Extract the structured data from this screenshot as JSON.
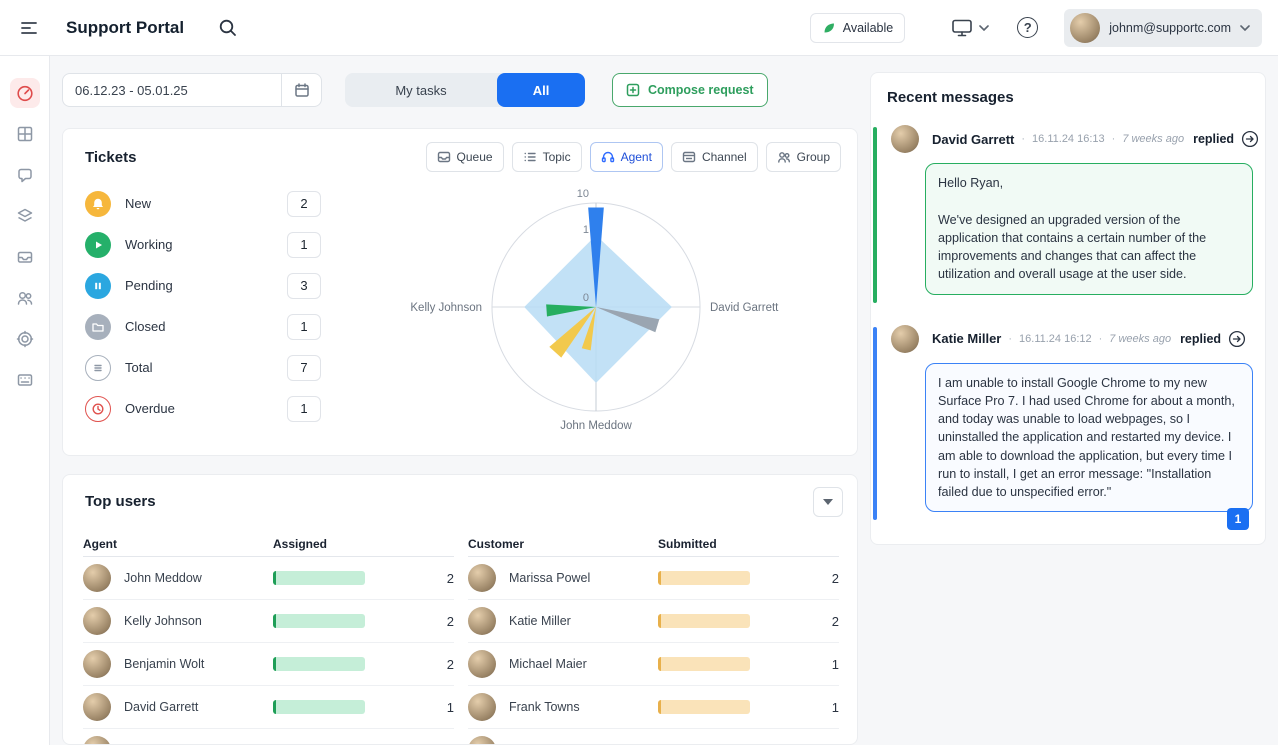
{
  "header": {
    "title": "Support Portal",
    "status_label": "Available",
    "user_email": "johnm@supportc.com"
  },
  "icons": {
    "help": "?"
  },
  "toolbar": {
    "date_range": "06.12.23 - 05.01.25",
    "tab_my_tasks": "My tasks",
    "tab_all": "All",
    "compose_label": "Compose request"
  },
  "tickets": {
    "title": "Tickets",
    "view_buttons": [
      {
        "label": "Queue",
        "active": false
      },
      {
        "label": "Topic",
        "active": false
      },
      {
        "label": "Agent",
        "active": true
      },
      {
        "label": "Channel",
        "active": false
      },
      {
        "label": "Group",
        "active": false
      }
    ],
    "stats": [
      {
        "label": "New",
        "value": "2",
        "color": "#f6b73c"
      },
      {
        "label": "Working",
        "value": "1",
        "color": "#25b06a"
      },
      {
        "label": "Pending",
        "value": "3",
        "color": "#2ba7e0"
      },
      {
        "label": "Closed",
        "value": "1",
        "color": "#a7b0bc"
      },
      {
        "label": "Total",
        "value": "7",
        "color": "#a7b0bc"
      },
      {
        "label": "Overdue",
        "value": "1",
        "color": "#e0524e"
      }
    ]
  },
  "chart_data": {
    "type": "radar",
    "max": 10,
    "tick_labels": [
      "10",
      "1",
      "0"
    ],
    "ticks": [
      {
        "label": "10",
        "offset": 114
      },
      {
        "label": "1",
        "offset": 78
      },
      {
        "label": "0",
        "offset": 10
      }
    ],
    "axis_labels": [
      {
        "label": "Kelly Johnson",
        "position": "left"
      },
      {
        "label": "David Garrett",
        "position": "right"
      },
      {
        "label": "John Meddow",
        "position": "bottom"
      }
    ],
    "area": {
      "color": "#b7dcf5",
      "values": {
        "top": 6.9,
        "right": 7.3,
        "bottom": 7.3,
        "left": 6.9
      }
    },
    "slices": [
      {
        "name": "blue",
        "color": "#2f80ed",
        "angle": 90,
        "width": 9,
        "value": 9.6
      },
      {
        "name": "green",
        "color": "#27ae60",
        "angle": 184,
        "width": 14,
        "value": 4.8
      },
      {
        "name": "yellow-large",
        "color": "#f2c94c",
        "angle": 228,
        "width": 15,
        "value": 5.9
      },
      {
        "name": "yellow-small",
        "color": "#f2c94c",
        "angle": 257,
        "width": 12,
        "value": 4.2
      },
      {
        "name": "gray",
        "color": "#9aa5b1",
        "angle": 343,
        "width": 12,
        "value": 6.2
      }
    ]
  },
  "top_users": {
    "title": "Top users",
    "agent_table": {
      "headers": [
        "Agent",
        "Assigned"
      ],
      "rows": [
        {
          "name": "John Meddow",
          "value": "2"
        },
        {
          "name": "Kelly Johnson",
          "value": "2"
        },
        {
          "name": "Benjamin Wolt",
          "value": "2"
        },
        {
          "name": "David Garrett",
          "value": "1"
        }
      ]
    },
    "customer_table": {
      "headers": [
        "Customer",
        "Submitted"
      ],
      "rows": [
        {
          "name": "Marissa Powel",
          "value": "2"
        },
        {
          "name": "Katie Miller",
          "value": "2"
        },
        {
          "name": "Michael Maier",
          "value": "1"
        },
        {
          "name": "Frank Towns",
          "value": "1"
        }
      ]
    }
  },
  "messages": {
    "title": "Recent messages",
    "items": [
      {
        "author": "David Garrett",
        "timestamp": "16.11.24 16:13",
        "ago": "7 weeks ago",
        "action": "replied",
        "accent": "#27ae60",
        "body": "Hello Ryan,\n\nWe've designed an upgraded version of the application that contains a certain number of the improvements and changes that can affect the utilization and overall usage at the user side."
      },
      {
        "author": "Katie Miller",
        "timestamp": "16.11.24 16:12",
        "ago": "7 weeks ago",
        "action": "replied",
        "accent": "#3b82f6",
        "body": "I am unable to install Google Chrome to my new Surface Pro 7. I had used Chrome for about a month, and today was unable to load webpages, so I uninstalled the application and restarted my device. I am able to download the application, but every time I run to install, I get an error message: \"Installation failed due to unspecified error.\""
      }
    ],
    "page": "1"
  }
}
